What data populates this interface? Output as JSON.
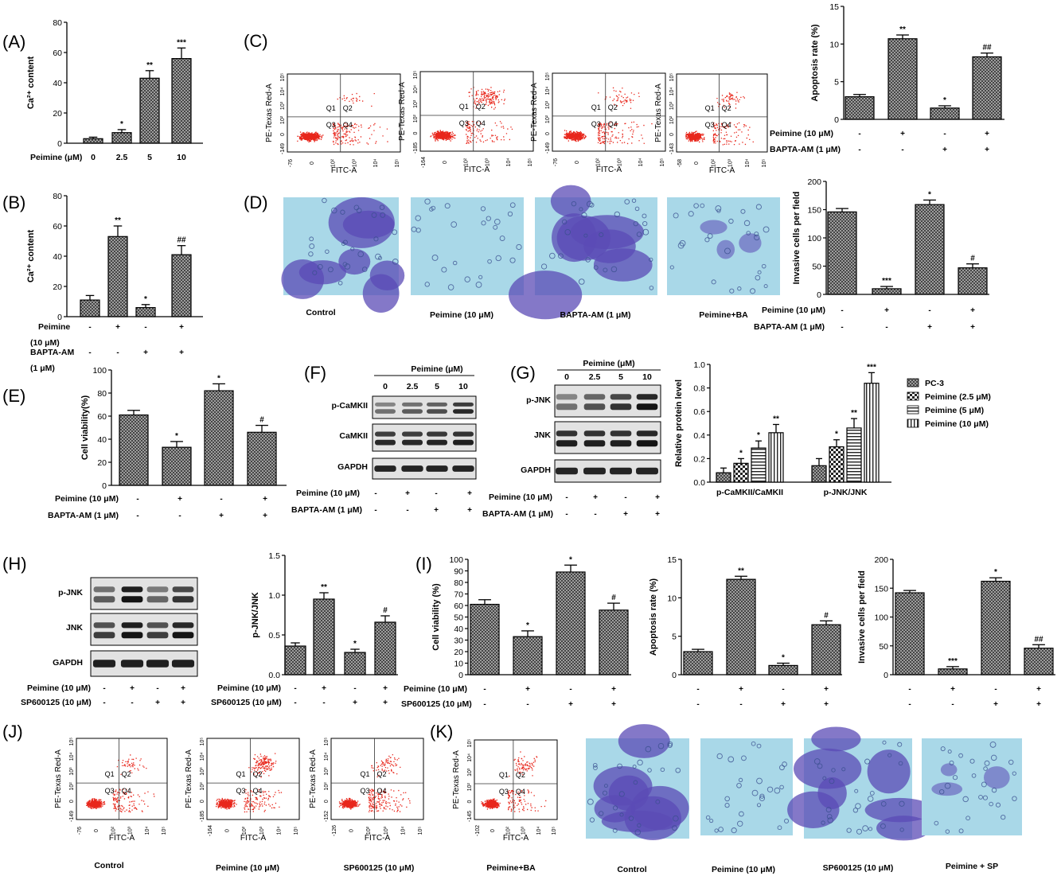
{
  "colors": {
    "bar": "#8a8a8a",
    "dots": "#e8261b",
    "stain_dark": "#5b4bb5",
    "stain_light": "#a9d8e8"
  },
  "panel_labels": {
    "A": "(A)",
    "B": "(B)",
    "C": "(C)",
    "D": "(D)",
    "E": "(E)",
    "F": "(F)",
    "G": "(G)",
    "H": "(H)",
    "I": "(I)",
    "J": "(J)",
    "K": "(K)"
  },
  "treat": {
    "peimine": "Peimine (10 μM)",
    "bapta": "BAPTA-AM (1 μM)",
    "sp": "SP600125 (10 μM)",
    "b_peimine1": "Peimine",
    "b_peimine2": "(10 μM)",
    "b_bapta1": "BAPTA-AM",
    "b_bapta2": "(1 μM)",
    "plus": "+",
    "minus": "-"
  },
  "flow": {
    "xaxis": "FITC-A",
    "yaxis": "PE-Texas Red-A",
    "q1": "Q1",
    "q2": "Q2",
    "q3": "Q3",
    "q4": "Q4"
  },
  "blot": {
    "peimine_um": "Peimine (μM)",
    "doses": [
      "0",
      "2.5",
      "5",
      "10"
    ],
    "p_camkii": "p-CaMKII",
    "camkii": "CaMKII",
    "gapdh": "GAPDH",
    "p_jnk": "p-JNK",
    "jnk": "JNK"
  },
  "captions": {
    "d": [
      "Control",
      "Peimine (10 μM)",
      "BAPTA-AM (1 μM)",
      "Peimine+BA"
    ],
    "j": [
      "Control",
      "Peimine (10 μM)",
      "SP600125 (10 μM)"
    ],
    "k_flow": "Peimine+BA",
    "k": [
      "Control",
      "Peimine (10 μM)",
      "SP600125 (10 μM)",
      "Peimine + SP"
    ]
  },
  "chart_data": [
    {
      "id": "A",
      "type": "bar",
      "ylabel": "Ca²⁺ content",
      "xaxis_title": "Peimine (μM)",
      "categories": [
        "0",
        "2.5",
        "5",
        "10"
      ],
      "values": [
        3,
        7,
        43,
        56
      ],
      "errors": [
        1,
        2,
        5,
        7
      ],
      "significance": [
        "",
        "*",
        "**",
        "***"
      ],
      "ylim": [
        0,
        80
      ],
      "yticks": [
        0,
        20,
        40,
        60,
        80
      ]
    },
    {
      "id": "B",
      "type": "bar",
      "ylabel": "Ca²⁺ content",
      "values": [
        11,
        53,
        6,
        41
      ],
      "errors": [
        3,
        7,
        2,
        6
      ],
      "significance": [
        "",
        "**",
        "*",
        "##"
      ],
      "ylim": [
        0,
        80
      ],
      "yticks": [
        0,
        20,
        40,
        60,
        80
      ]
    },
    {
      "id": "C",
      "type": "bar",
      "ylabel": "Apoptosis rate (%)",
      "values": [
        3,
        10.7,
        1.5,
        8.3
      ],
      "errors": [
        0.3,
        0.5,
        0.3,
        0.5
      ],
      "significance": [
        "",
        "**",
        "*",
        "##"
      ],
      "ylim": [
        0,
        15
      ],
      "yticks": [
        0,
        5,
        10,
        15
      ]
    },
    {
      "id": "D",
      "type": "bar",
      "ylabel": "Invasive cells per field",
      "values": [
        146,
        10,
        159,
        47
      ],
      "errors": [
        6,
        4,
        8,
        7
      ],
      "significance": [
        "",
        "***",
        "*",
        "#"
      ],
      "ylim": [
        0,
        200
      ],
      "yticks": [
        0,
        50,
        100,
        150,
        200
      ]
    },
    {
      "id": "E",
      "type": "bar",
      "ylabel": "Cell viability(%)",
      "values": [
        61,
        33,
        82,
        46
      ],
      "errors": [
        4,
        5,
        6,
        6
      ],
      "significance": [
        "",
        "*",
        "*",
        "#"
      ],
      "ylim": [
        0,
        100
      ],
      "yticks": [
        0,
        20,
        40,
        60,
        80,
        100
      ],
      "yticklabels": [
        "0",
        "20",
        "40",
        "60",
        "80",
        "100"
      ]
    },
    {
      "id": "G",
      "type": "bar",
      "ylabel": "Relative protein level",
      "categories": [
        "p-CaMKII/CaMKII",
        "p-JNK/JNK"
      ],
      "series": [
        {
          "name": "PC-3",
          "values": [
            0.08,
            0.14
          ],
          "errors": [
            0.04,
            0.06
          ],
          "significance": [
            "",
            ""
          ]
        },
        {
          "name": "Peimine (2.5 μM)",
          "values": [
            0.16,
            0.3
          ],
          "errors": [
            0.04,
            0.06
          ],
          "significance": [
            "*",
            "*"
          ]
        },
        {
          "name": "Peimine (5 μM)",
          "values": [
            0.29,
            0.46
          ],
          "errors": [
            0.06,
            0.08
          ],
          "significance": [
            "*",
            "**"
          ]
        },
        {
          "name": "Peimine (10 μM)",
          "values": [
            0.42,
            0.84
          ],
          "errors": [
            0.07,
            0.09
          ],
          "significance": [
            "**",
            "***"
          ]
        }
      ],
      "ylim": [
        0,
        1.0
      ],
      "yticks": [
        0,
        0.2,
        0.4,
        0.6,
        0.8,
        1.0
      ],
      "yticklabels": [
        "0.0",
        "0.2",
        "0.4",
        "0.6",
        "0.8",
        "1.0"
      ]
    },
    {
      "id": "H",
      "type": "bar",
      "ylabel": "p-JNK/JNK",
      "values": [
        0.36,
        0.95,
        0.28,
        0.66
      ],
      "errors": [
        0.04,
        0.08,
        0.04,
        0.08
      ],
      "significance": [
        "",
        "**",
        "*",
        "#"
      ],
      "ylim": [
        0,
        1.5
      ],
      "yticks": [
        0,
        0.5,
        1.0,
        1.5
      ],
      "yticklabels": [
        "0.0",
        "0.5",
        "1.0",
        "1.5"
      ]
    },
    {
      "id": "I1",
      "type": "bar",
      "ylabel": "Cell viability (%)",
      "values": [
        61,
        33,
        89,
        56
      ],
      "errors": [
        4,
        5,
        6,
        6
      ],
      "significance": [
        "",
        "*",
        "*",
        "#"
      ],
      "ylim": [
        0,
        100
      ],
      "yticks": [
        0,
        10,
        20,
        30,
        40,
        50,
        60,
        70,
        80,
        90,
        100
      ]
    },
    {
      "id": "I2",
      "type": "bar",
      "ylabel": "Apoptosis rate (%)",
      "values": [
        3,
        12.4,
        1.2,
        6.5
      ],
      "errors": [
        0.3,
        0.4,
        0.3,
        0.5
      ],
      "significance": [
        "",
        "**",
        "*",
        "#"
      ],
      "ylim": [
        0,
        15
      ],
      "yticks": [
        0,
        5,
        10,
        15
      ]
    },
    {
      "id": "I3",
      "type": "bar",
      "ylabel": "Invasive cells per field",
      "values": [
        142,
        10,
        162,
        46
      ],
      "errors": [
        4,
        4,
        6,
        6
      ],
      "significance": [
        "",
        "***",
        "*",
        "##"
      ],
      "ylim": [
        0,
        200
      ],
      "yticks": [
        0,
        50,
        100,
        150,
        200
      ]
    }
  ]
}
